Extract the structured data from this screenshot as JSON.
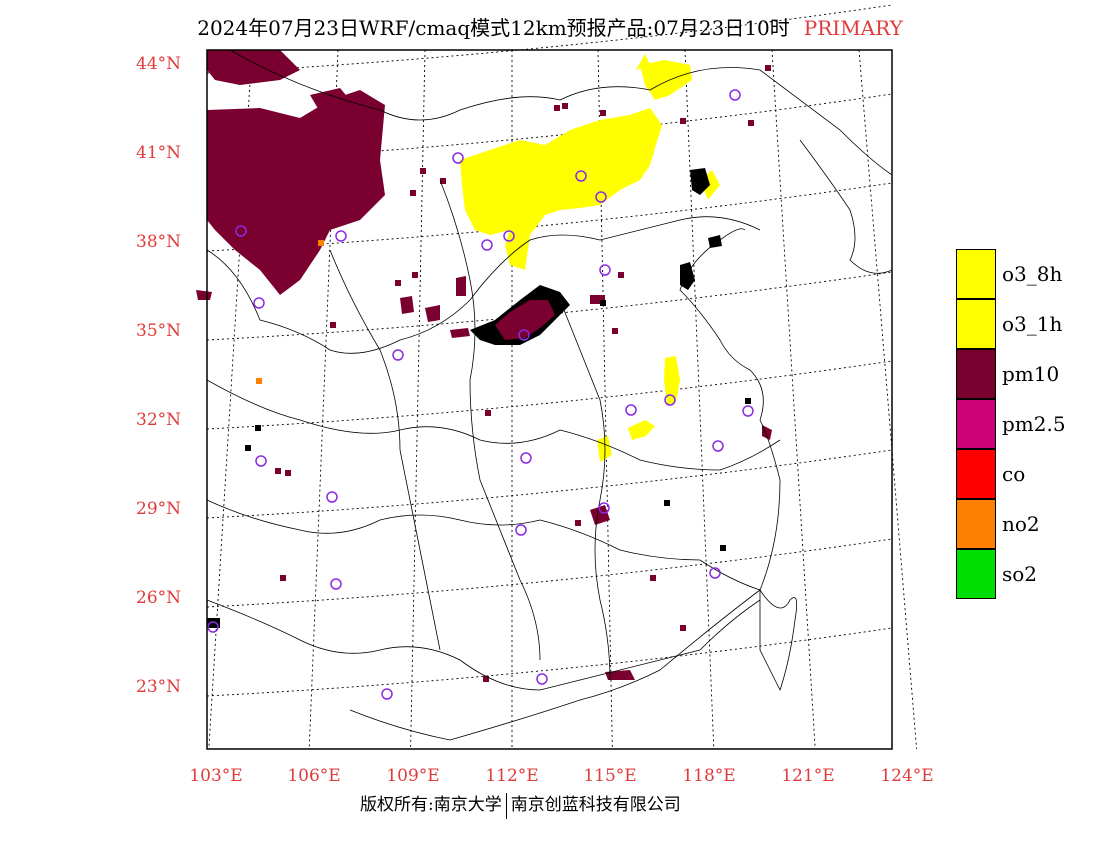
{
  "title": {
    "main": "2024年07月23日WRF/cmaq模式12km预报产品:07月23日10时",
    "tag": "PRIMARY"
  },
  "map": {
    "lat_labels": [
      "44°N",
      "41°N",
      "38°N",
      "35°N",
      "32°N",
      "29°N",
      "26°N",
      "23°N"
    ],
    "lon_labels": [
      "103°E",
      "106°E",
      "109°E",
      "112°E",
      "115°E",
      "118°E",
      "121°E",
      "124°E"
    ],
    "colors": {
      "pm10": "#7a0030",
      "pm2.5": "#cc0077",
      "o3": "#ffff00",
      "no2": "#ff8000",
      "station": "#8a2be2"
    }
  },
  "legend": {
    "items": [
      {
        "label": "o3_8h",
        "color": "#ffff00"
      },
      {
        "label": "o3_1h",
        "color": "#ffff00"
      },
      {
        "label": "pm10",
        "color": "#7a0030"
      },
      {
        "label": "pm2.5",
        "color": "#cc0077"
      },
      {
        "label": "co",
        "color": "#ff0000"
      },
      {
        "label": "no2",
        "color": "#ff8000"
      },
      {
        "label": "so2",
        "color": "#00dd00"
      }
    ]
  },
  "footer": {
    "left": "版权所有:南京大学",
    "right": "南京创蓝科技有限公司"
  }
}
